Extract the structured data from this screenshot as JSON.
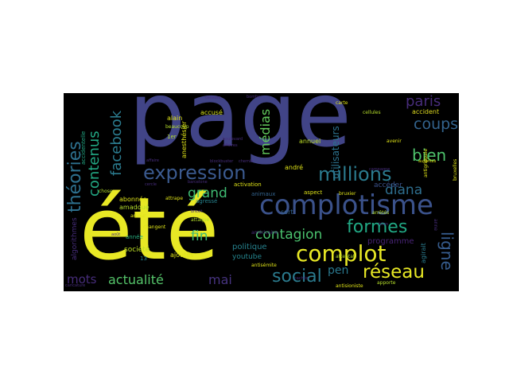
{
  "wordcloud": {
    "background": "#000000",
    "palette": [
      "#440154",
      "#482475",
      "#414487",
      "#355f8d",
      "#2a788e",
      "#21918c",
      "#22a884",
      "#44bf70",
      "#7ad151",
      "#bddf26",
      "#fde725"
    ],
    "words": [
      {
        "text": "page",
        "color": "#414487"
      },
      {
        "text": "été",
        "color": "#e8e825"
      },
      {
        "text": "complotisme",
        "color": "#3b528b"
      },
      {
        "text": "complot",
        "color": "#e8e825"
      },
      {
        "text": "expression",
        "color": "#3b5a8f"
      },
      {
        "text": "millions",
        "color": "#2b7b8e"
      },
      {
        "text": "réseau",
        "color": "#e8e825"
      },
      {
        "text": "social",
        "color": "#2b7b8e"
      },
      {
        "text": "formes",
        "color": "#21a884"
      },
      {
        "text": "actualité",
        "color": "#55c46a"
      },
      {
        "text": "théories",
        "color": "#2d708e"
      },
      {
        "text": "contagion",
        "color": "#4ac16d"
      },
      {
        "text": "contenus",
        "color": "#22a884"
      },
      {
        "text": "facebook",
        "color": "#2b7b8e"
      },
      {
        "text": "médias",
        "color": "#62ca5c"
      },
      {
        "text": "grand",
        "color": "#3fbc73"
      },
      {
        "text": "diana",
        "color": "#2e6e8e"
      },
      {
        "text": "bien",
        "color": "#4ec36b"
      },
      {
        "text": "coups",
        "color": "#33638d"
      },
      {
        "text": "paris",
        "color": "#472c7a"
      },
      {
        "text": "ligne",
        "color": "#365c8d"
      },
      {
        "text": "mai",
        "color": "#46337f"
      },
      {
        "text": "mots",
        "color": "#472d7b"
      },
      {
        "text": "fin",
        "color": "#3fbc73"
      },
      {
        "text": "pen",
        "color": "#2a788e"
      },
      {
        "text": "utilisateurs",
        "color": "#2c728e"
      },
      {
        "text": "programme",
        "color": "#482475"
      },
      {
        "text": "accéder",
        "color": "#3b528b"
      },
      {
        "text": "accident",
        "color": "#ddd91f"
      },
      {
        "text": "annuel",
        "color": "#bddf26"
      },
      {
        "text": "andré",
        "color": "#dfe318"
      },
      {
        "text": "politique",
        "color": "#26828e"
      },
      {
        "text": "youtube",
        "color": "#25858e"
      },
      {
        "text": "société",
        "color": "#bddf26"
      },
      {
        "text": "année",
        "color": "#29af7f"
      },
      {
        "text": "amadoué",
        "color": "#b5de2b"
      },
      {
        "text": "abonnés",
        "color": "#dfe318"
      },
      {
        "text": "accusé",
        "color": "#d8e219"
      },
      {
        "text": "alain",
        "color": "#dfe318"
      },
      {
        "text": "beaucoup",
        "color": "#b5de2b"
      },
      {
        "text": "1er",
        "color": "#b5de2b"
      },
      {
        "text": "anesthésier",
        "color": "#dfe318"
      },
      {
        "text": "agressé",
        "color": "#26828e"
      },
      {
        "text": "sort",
        "color": "#33638d"
      },
      {
        "text": "animaux",
        "color": "#33638d"
      },
      {
        "text": "aspect",
        "color": "#dfe318"
      },
      {
        "text": "attaque",
        "color": "#b5de2b"
      },
      {
        "text": "activation",
        "color": "#dfe318"
      },
      {
        "text": "attrape",
        "color": "#dfe318"
      },
      {
        "text": "ajoutés",
        "color": "#dfe318"
      },
      {
        "text": "algorithmes",
        "color": "#472d7b"
      },
      {
        "text": "amour",
        "color": "#dfe318"
      },
      {
        "text": "agirait",
        "color": "#2b7b8e"
      },
      {
        "text": "accidentelle",
        "color": "#22a884"
      },
      {
        "text": "carte",
        "color": "#dfe318"
      },
      {
        "text": "cellules",
        "color": "#b5de2b"
      },
      {
        "text": "avenir",
        "color": "#dfe318"
      },
      {
        "text": "antigrippale",
        "color": "#dfe318"
      },
      {
        "text": "autorités",
        "color": "#dfe318"
      },
      {
        "text": "bruxelles",
        "color": "#dfe318"
      },
      {
        "text": "bruxier",
        "color": "#dfe318"
      },
      {
        "text": "arrêtés",
        "color": "#b5de2b"
      },
      {
        "text": "antisioniste",
        "color": "#dfe318"
      },
      {
        "text": "apporte",
        "color": "#b5de2b"
      },
      {
        "text": "attentat",
        "color": "#b5de2b"
      },
      {
        "text": "antisémite",
        "color": "#dfe318"
      },
      {
        "text": "anne",
        "color": "#472d7b"
      },
      {
        "text": "changent",
        "color": "#dfe318"
      },
      {
        "text": "chose",
        "color": "#b5de2b"
      },
      {
        "text": "13",
        "color": "#26828e"
      },
      {
        "text": "août",
        "color": "#472d7b"
      },
      {
        "text": "censure",
        "color": "#472d7b"
      },
      {
        "text": "brexit",
        "color": "#472d7b"
      },
      {
        "text": "caricature",
        "color": "#472d7b"
      },
      {
        "text": "bilan",
        "color": "#472d7b"
      },
      {
        "text": "campagne",
        "color": "#472d7b"
      },
      {
        "text": "cachés",
        "color": "#472d7b"
      },
      {
        "text": "barcelone",
        "color": "#472d7b"
      },
      {
        "text": "cercle",
        "color": "#472d7b"
      },
      {
        "text": "blockbuster",
        "color": "#472d7b"
      },
      {
        "text": "américaine",
        "color": "#472d7b"
      },
      {
        "text": "affaire",
        "color": "#472d7b"
      },
      {
        "text": "bombe",
        "color": "#472d7b"
      },
      {
        "text": "boulevard",
        "color": "#472d7b"
      },
      {
        "text": "affaires",
        "color": "#472d7b"
      },
      {
        "text": "chemin",
        "color": "#472d7b"
      }
    ]
  }
}
